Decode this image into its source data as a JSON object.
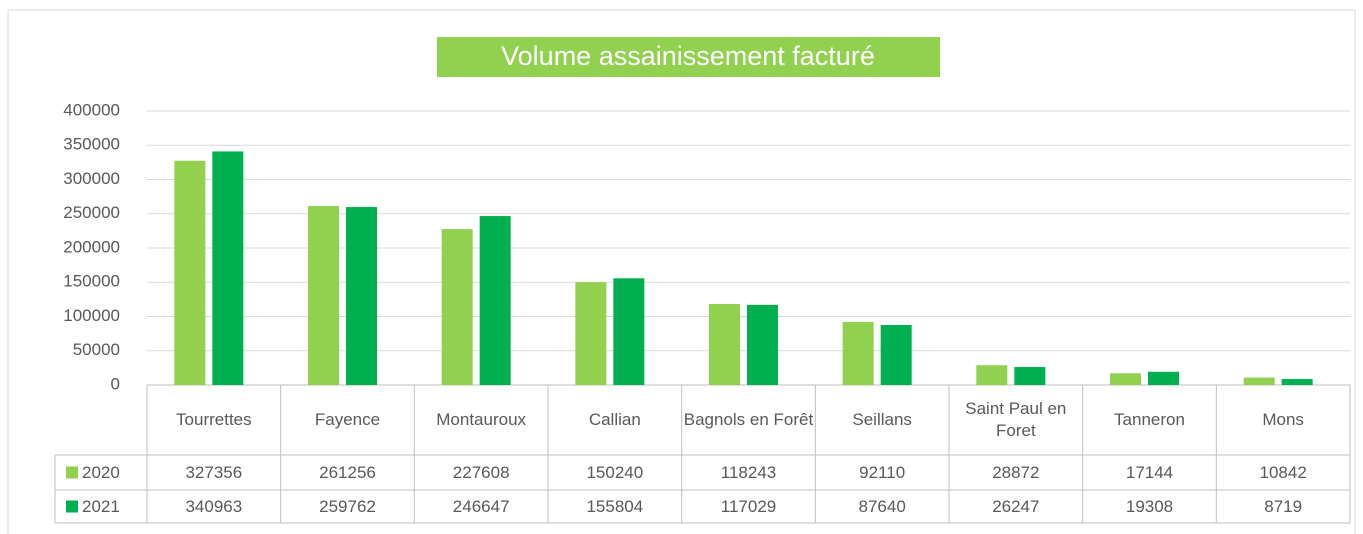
{
  "chart_data": {
    "type": "bar",
    "title": "Volume assainissement facturé",
    "categories": [
      "Tourrettes",
      "Fayence",
      "Montauroux",
      "Callian",
      "Bagnols en Forêt",
      "Seillans",
      "Saint Paul en Foret",
      "Tanneron",
      "Mons"
    ],
    "series": [
      {
        "name": "2020",
        "color": "#92d050",
        "values": [
          327356,
          261256,
          227608,
          150240,
          118243,
          92110,
          28872,
          17144,
          10842
        ]
      },
      {
        "name": "2021",
        "color": "#00b050",
        "values": [
          340963,
          259762,
          246647,
          155804,
          117029,
          87640,
          26247,
          19308,
          8719
        ]
      }
    ],
    "ylim": [
      0,
      400000
    ],
    "yticks": [
      0,
      50000,
      100000,
      150000,
      200000,
      250000,
      300000,
      350000,
      400000
    ],
    "grid": true,
    "title_background": "#92d050"
  }
}
